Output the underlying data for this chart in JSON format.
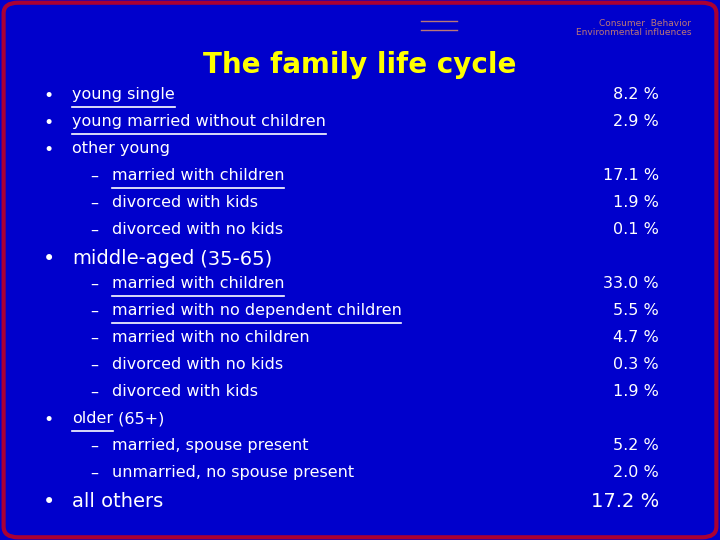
{
  "bg_color": "#0000cc",
  "border_color": "#aa0033",
  "header_line1": "Consumer  Behavior",
  "header_line2": "Environmental influences",
  "header_color": "#bb7777",
  "title": "The family life cycle",
  "title_color": "#ffff00",
  "text_color": "#ffffff",
  "bullet_color": "#ffffff",
  "rows": [
    {
      "indent": 0,
      "bullet": true,
      "underline": true,
      "text": "young single",
      "pct": "8.2 %",
      "extra": ""
    },
    {
      "indent": 0,
      "bullet": true,
      "underline": true,
      "text": "young married without children",
      "pct": "2.9 %",
      "extra": ""
    },
    {
      "indent": 0,
      "bullet": true,
      "underline": false,
      "text": "other young",
      "pct": "",
      "extra": ""
    },
    {
      "indent": 1,
      "bullet": false,
      "underline": true,
      "text": "married with children",
      "pct": "17.1 %",
      "extra": ""
    },
    {
      "indent": 1,
      "bullet": false,
      "underline": false,
      "text": "divorced with kids",
      "pct": "1.9 %",
      "extra": ""
    },
    {
      "indent": 1,
      "bullet": false,
      "underline": false,
      "text": "divorced with no kids",
      "pct": "0.1 %",
      "extra": ""
    },
    {
      "indent": 0,
      "bullet": true,
      "underline": false,
      "text": "middle-aged",
      "pct": "",
      "extra": " (35-65)",
      "big": true
    },
    {
      "indent": 1,
      "bullet": false,
      "underline": true,
      "text": "married with children",
      "pct": "33.0 %",
      "extra": ""
    },
    {
      "indent": 1,
      "bullet": false,
      "underline": true,
      "text": "married with no dependent children",
      "pct": "5.5 %",
      "extra": ""
    },
    {
      "indent": 1,
      "bullet": false,
      "underline": false,
      "text": "married with no children",
      "pct": "4.7 %",
      "extra": ""
    },
    {
      "indent": 1,
      "bullet": false,
      "underline": false,
      "text": "divorced with no kids",
      "pct": "0.3 %",
      "extra": ""
    },
    {
      "indent": 1,
      "bullet": false,
      "underline": false,
      "text": "divorced with kids",
      "pct": "1.9 %",
      "extra": ""
    },
    {
      "indent": 0,
      "bullet": true,
      "underline": true,
      "text": "older",
      "pct": "",
      "extra": " (65+)"
    },
    {
      "indent": 1,
      "bullet": false,
      "underline": false,
      "text": "married, spouse present",
      "pct": "5.2 %",
      "extra": ""
    },
    {
      "indent": 1,
      "bullet": false,
      "underline": false,
      "text": "unmarried, no spouse present",
      "pct": "2.0 %",
      "extra": ""
    },
    {
      "indent": 0,
      "bullet": true,
      "underline": false,
      "text": "all others",
      "pct": "17.2 %",
      "extra": "",
      "big": true
    }
  ],
  "figsize": [
    7.2,
    5.4
  ],
  "dpi": 100
}
